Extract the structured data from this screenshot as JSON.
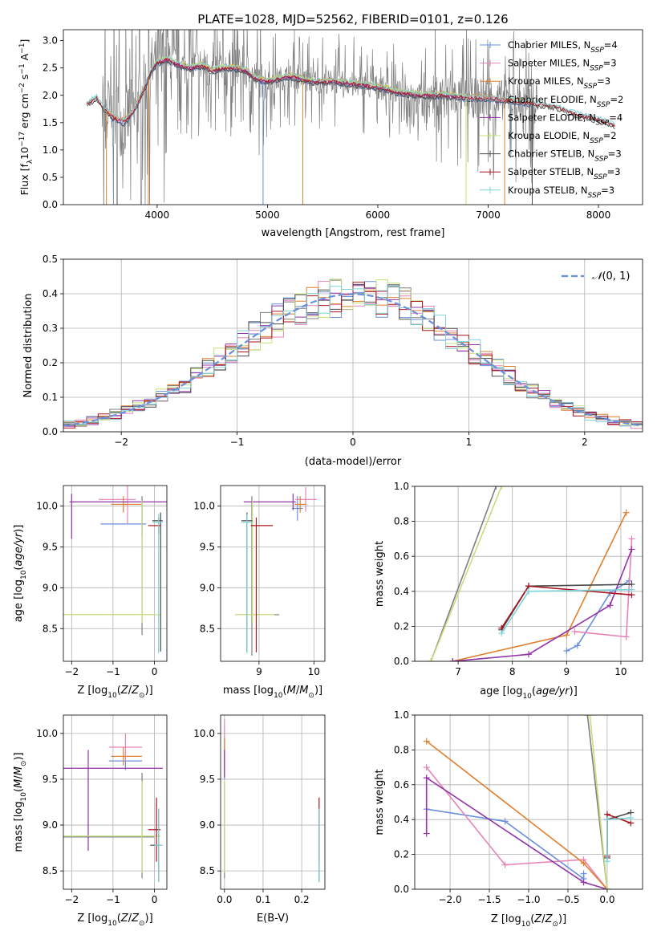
{
  "figure": {
    "title": "PLATE=1028, MJD=52562, FIBERID=0101, z=0.126"
  },
  "colors": {
    "Chabrier MILES": "#6a8fdc",
    "Salpeter MILES": "#e683b8",
    "Kroupa MILES": "#e0802e",
    "Chabrier ELODIE": "#7f7f7f",
    "Salpeter ELODIE": "#9333a8",
    "Kroupa ELODIE": "#c5e078",
    "Chabrier STELIB": "#4a4a4a",
    "Salpeter STELIB": "#a8141e",
    "Kroupa STELIB": "#7fd3d8"
  },
  "chart_data": [
    {
      "id": "spectrum",
      "type": "line",
      "title": "PLATE=1028, MJD=52562, FIBERID=0101, z=0.126",
      "xlabel": "wavelength [Angstrom, rest frame]",
      "ylabel": "Flux [f_λ 10^-17 erg cm^-2 s^-1 A^-1]",
      "xlim": [
        3150,
        8400
      ],
      "ylim": [
        0,
        3.2
      ],
      "xticks": [
        4000,
        5000,
        6000,
        7000,
        8000
      ],
      "yticks": [
        0.0,
        0.5,
        1.0,
        1.5,
        2.0,
        2.5,
        3.0
      ],
      "grid": false,
      "legend_position": "top-right",
      "data_color": "#7f7f7f",
      "noise_range": [
        3500,
        7450
      ],
      "continuum": {
        "x": [
          3360,
          3450,
          3520,
          3600,
          3700,
          3800,
          3900,
          3950,
          4000,
          4100,
          4200,
          4300,
          4400,
          4500,
          4600,
          4700,
          4800,
          4900,
          5000,
          5200,
          5400,
          5600,
          5800,
          6000,
          6200,
          6400,
          6600,
          6800,
          7000,
          7200,
          7400,
          7600,
          7800,
          8000,
          8150
        ],
        "y": [
          1.85,
          1.95,
          1.75,
          1.6,
          1.5,
          1.75,
          2.2,
          2.45,
          2.6,
          2.65,
          2.55,
          2.5,
          2.55,
          2.45,
          2.5,
          2.5,
          2.45,
          2.3,
          2.25,
          2.35,
          2.25,
          2.25,
          2.2,
          2.15,
          2.05,
          2.0,
          2.0,
          1.95,
          1.95,
          1.9,
          1.85,
          1.8,
          1.65,
          1.55,
          1.45
        ]
      },
      "series": [
        {
          "name": "Chabrier MILES, N_SSP=4",
          "key": "Chabrier MILES",
          "xrange": [
            3540,
            7400
          ]
        },
        {
          "name": "Salpeter MILES, N_SSP=3",
          "key": "Salpeter MILES",
          "xrange": [
            3540,
            7400
          ]
        },
        {
          "name": "Kroupa MILES, N_SSP=3",
          "key": "Kroupa MILES",
          "xrange": [
            3540,
            7400
          ]
        },
        {
          "name": "Chabrier ELODIE, N_SSP=2",
          "key": "Chabrier ELODIE",
          "xrange": [
            3900,
            6800
          ]
        },
        {
          "name": "Salpeter ELODIE, N_SSP=4",
          "key": "Salpeter ELODIE",
          "xrange": [
            3900,
            6800
          ]
        },
        {
          "name": "Kroupa ELODIE, N_SSP=2",
          "key": "Kroupa ELODIE",
          "xrange": [
            3900,
            6800
          ]
        },
        {
          "name": "Chabrier STELIB, N_SSP=3",
          "key": "Chabrier STELIB",
          "xrange": [
            3370,
            8150
          ]
        },
        {
          "name": "Salpeter STELIB, N_SSP=3",
          "key": "Salpeter STELIB",
          "xrange": [
            3370,
            8150
          ]
        },
        {
          "name": "Kroupa STELIB, N_SSP=3",
          "key": "Kroupa STELIB",
          "xrange": [
            3370,
            8150
          ]
        }
      ]
    },
    {
      "id": "residuals",
      "type": "line",
      "xlabel": "(data-model)/error",
      "ylabel": "Normed distribution",
      "xlim": [
        -2.5,
        2.5
      ],
      "ylim": [
        0,
        0.5
      ],
      "xticks": [
        -2,
        -1,
        0,
        1,
        2
      ],
      "yticks": [
        0.0,
        0.1,
        0.2,
        0.3,
        0.4,
        0.5
      ],
      "grid": true,
      "legend_position": "top-right",
      "legend": [
        "N(0,1)"
      ],
      "gaussian_color": "#6a8fdc",
      "bin_width": 0.1,
      "bin_start": -2.5
    },
    {
      "id": "age-vs-Z",
      "type": "scatter",
      "xlabel": "Z [log10(Z/Z_sun)]",
      "ylabel": "age  [log10(age/yr)]",
      "xlim": [
        -2.2,
        0.3
      ],
      "ylim": [
        8.1,
        10.25
      ],
      "xticks": [
        -2,
        -1,
        0
      ],
      "yticks": [
        8.5,
        9.0,
        9.5,
        10.0
      ],
      "grid": true,
      "points": [
        {
          "key": "Chabrier MILES",
          "x": -0.3,
          "y": 9.78,
          "xerr": [
            1.0,
            0.1
          ],
          "yerr": [
            0.15,
            0.3
          ]
        },
        {
          "key": "Salpeter MILES",
          "x": -0.65,
          "y": 10.08,
          "xerr": [
            0.7,
            0.2
          ],
          "yerr": [
            0.3,
            0.3
          ]
        },
        {
          "key": "Kroupa MILES",
          "x": -0.75,
          "y": 10.02,
          "xerr": [
            0.3,
            0.45
          ],
          "yerr": [
            0.1,
            0.1
          ]
        },
        {
          "key": "Chabrier ELODIE",
          "x": -0.3,
          "y": 8.67,
          "xerr": [
            2.0,
            0.3
          ],
          "yerr": [
            0.25,
            1.45
          ]
        },
        {
          "key": "Salpeter ELODIE",
          "x": -2.0,
          "y": 10.05,
          "xerr": [
            0.05,
            2.3
          ],
          "yerr": [
            0.45,
            0.1
          ]
        },
        {
          "key": "Kroupa ELODIE",
          "x": -0.3,
          "y": 8.67,
          "xerr": [
            1.9,
            0.45
          ],
          "yerr": [
            0.1,
            1.4
          ]
        },
        {
          "key": "Chabrier STELIB",
          "x": 0.15,
          "y": 9.82,
          "xerr": [
            0.2,
            0.05
          ],
          "yerr": [
            1.6,
            0.1
          ]
        },
        {
          "key": "Salpeter STELIB",
          "x": 0.1,
          "y": 9.76,
          "xerr": [
            0.25,
            0.05
          ],
          "yerr": [
            0.1,
            0.1
          ]
        },
        {
          "key": "Kroupa STELIB",
          "x": 0.1,
          "y": 9.8,
          "xerr": [
            0.15,
            0.1
          ],
          "yerr": [
            1.6,
            0.1
          ]
        }
      ]
    },
    {
      "id": "age-vs-mass",
      "type": "scatter",
      "xlabel": "mass [log10(M/M_sun)]",
      "ylabel": "",
      "xlim": [
        8.3,
        10.2
      ],
      "ylim": [
        8.1,
        10.25
      ],
      "xticks": [
        9,
        10
      ],
      "yticks": [
        8.5,
        9.0,
        9.5,
        10.0
      ],
      "grid": true,
      "points": [
        {
          "key": "Chabrier MILES",
          "x": 9.7,
          "y": 9.97,
          "xerr": [
            0.1,
            0.1
          ],
          "yerr": [
            0.15,
            0.15
          ]
        },
        {
          "key": "Salpeter MILES",
          "x": 9.85,
          "y": 10.08,
          "xerr": [
            0.2,
            0.2
          ],
          "yerr": [
            0.15,
            0.15
          ]
        },
        {
          "key": "Kroupa MILES",
          "x": 9.75,
          "y": 10.02,
          "xerr": [
            0.1,
            0.1
          ],
          "yerr": [
            0.1,
            0.1
          ]
        },
        {
          "key": "Chabrier ELODIE",
          "x": 8.87,
          "y": 8.67,
          "xerr": [
            0.3,
            0.5
          ],
          "yerr": [
            0.5,
            1.45
          ]
        },
        {
          "key": "Salpeter ELODIE",
          "x": 9.62,
          "y": 10.05,
          "xerr": [
            0.9,
            0.05
          ],
          "yerr": [
            0.1,
            0.1
          ]
        },
        {
          "key": "Kroupa ELODIE",
          "x": 8.88,
          "y": 8.67,
          "xerr": [
            0.3,
            0.4
          ],
          "yerr": [
            0.1,
            1.4
          ]
        },
        {
          "key": "Chabrier STELIB",
          "x": 8.78,
          "y": 9.82,
          "xerr": [
            0.1,
            0.1
          ],
          "yerr": [
            1.6,
            0.1
          ]
        },
        {
          "key": "Salpeter STELIB",
          "x": 8.95,
          "y": 9.76,
          "xerr": [
            0.1,
            0.3
          ],
          "yerr": [
            1.55,
            0.1
          ]
        },
        {
          "key": "Kroupa STELIB",
          "x": 8.78,
          "y": 9.8,
          "xerr": [
            0.1,
            0.1
          ],
          "yerr": [
            1.6,
            0.1
          ]
        }
      ]
    },
    {
      "id": "weight-vs-age",
      "type": "line",
      "xlabel": "age  [log10(age/yr)]",
      "ylabel": "mass weight",
      "xlim": [
        6.2,
        10.4
      ],
      "ylim": [
        0,
        1
      ],
      "xticks": [
        7,
        8,
        9,
        10
      ],
      "yticks": [
        0.0,
        0.2,
        0.4,
        0.6,
        0.8,
        1.0
      ],
      "grid": true,
      "series": [
        {
          "key": "Chabrier MILES",
          "x": [
            9.0,
            9.2,
            9.8,
            10.15
          ],
          "y": [
            0.06,
            0.09,
            0.39,
            0.46
          ]
        },
        {
          "key": "Salpeter MILES",
          "x": [
            9.15,
            10.1,
            10.2
          ],
          "y": [
            0.17,
            0.14,
            0.7
          ]
        },
        {
          "key": "Kroupa MILES",
          "x": [
            6.9,
            9.0,
            10.1
          ],
          "y": [
            0.0,
            0.15,
            0.85
          ]
        },
        {
          "key": "Chabrier ELODIE",
          "x": [
            6.5,
            7.7
          ],
          "y": [
            0.0,
            1.0
          ]
        },
        {
          "key": "Salpeter ELODIE",
          "x": [
            6.9,
            8.3,
            9.8,
            10.2
          ],
          "y": [
            0.0,
            0.04,
            0.32,
            0.64
          ]
        },
        {
          "key": "Kroupa ELODIE",
          "x": [
            6.5,
            7.8
          ],
          "y": [
            0.0,
            1.0
          ]
        },
        {
          "key": "Chabrier STELIB",
          "x": [
            7.8,
            8.3,
            10.2
          ],
          "y": [
            0.18,
            0.43,
            0.44
          ]
        },
        {
          "key": "Salpeter STELIB",
          "x": [
            7.8,
            8.3,
            10.2
          ],
          "y": [
            0.19,
            0.43,
            0.38
          ]
        },
        {
          "key": "Kroupa STELIB",
          "x": [
            7.8,
            8.3,
            10.2
          ],
          "y": [
            0.16,
            0.4,
            0.41
          ]
        }
      ]
    },
    {
      "id": "mass-vs-Z",
      "type": "scatter",
      "xlabel": "Z [log10(Z/Z_sun)]",
      "ylabel": "mass [log10(M/M_sun)]",
      "xlim": [
        -2.2,
        0.3
      ],
      "ylim": [
        8.3,
        10.2
      ],
      "xticks": [
        -2,
        -1,
        0
      ],
      "yticks": [
        8.5,
        9.0,
        9.5,
        10.0
      ],
      "grid": true,
      "points": [
        {
          "key": "Chabrier MILES",
          "x": -0.7,
          "y": 9.7,
          "xerr": [
            0.4,
            0.4
          ],
          "yerr": [
            0.1,
            0.1
          ]
        },
        {
          "key": "Salpeter MILES",
          "x": -0.7,
          "y": 9.85,
          "xerr": [
            0.4,
            0.4
          ],
          "yerr": [
            0.15,
            0.15
          ]
        },
        {
          "key": "Kroupa MILES",
          "x": -0.75,
          "y": 9.75,
          "xerr": [
            0.3,
            0.45
          ],
          "yerr": [
            0.1,
            0.1
          ]
        },
        {
          "key": "Chabrier ELODIE",
          "x": -0.3,
          "y": 8.87,
          "xerr": [
            2.0,
            0.3
          ],
          "yerr": [
            0.45,
            0.7
          ]
        },
        {
          "key": "Salpeter ELODIE",
          "x": -1.6,
          "y": 9.62,
          "xerr": [
            0.6,
            1.8
          ],
          "yerr": [
            0.9,
            0.2
          ]
        },
        {
          "key": "Kroupa ELODIE",
          "x": -0.3,
          "y": 8.88,
          "xerr": [
            1.9,
            0.45
          ],
          "yerr": [
            0.4,
            0.6
          ]
        },
        {
          "key": "Chabrier STELIB",
          "x": 0.1,
          "y": 8.78,
          "xerr": [
            0.2,
            0.05
          ],
          "yerr": [
            0.4,
            0.4
          ]
        },
        {
          "key": "Salpeter STELIB",
          "x": 0.05,
          "y": 8.95,
          "xerr": [
            0.2,
            0.1
          ],
          "yerr": [
            0.35,
            0.35
          ]
        },
        {
          "key": "Kroupa STELIB",
          "x": 0.1,
          "y": 8.78,
          "xerr": [
            0.1,
            0.1
          ],
          "yerr": [
            0.4,
            0.4
          ]
        }
      ]
    },
    {
      "id": "mass-vs-ebv",
      "type": "scatter",
      "xlabel": "E(B-V)",
      "ylabel": "",
      "xlim": [
        -0.01,
        0.26
      ],
      "ylim": [
        8.3,
        10.2
      ],
      "xticks": [
        0.0,
        0.1,
        0.2
      ],
      "yticks": [
        8.5,
        9.0,
        9.5,
        10.0
      ],
      "grid": true,
      "points": [
        {
          "key": "Chabrier MILES",
          "x": 0.0,
          "y": 9.7,
          "xerr": [
            0,
            0
          ],
          "yerr": [
            0.2,
            0.2
          ]
        },
        {
          "key": "Salpeter MILES",
          "x": 0.0,
          "y": 9.85,
          "xerr": [
            0,
            0
          ],
          "yerr": [
            0.3,
            0.3
          ]
        },
        {
          "key": "Kroupa MILES",
          "x": 0.0,
          "y": 9.75,
          "xerr": [
            0,
            0
          ],
          "yerr": [
            0.2,
            0.2
          ]
        },
        {
          "key": "Chabrier ELODIE",
          "x": 0.0,
          "y": 8.87,
          "xerr": [
            0,
            0
          ],
          "yerr": [
            0.45,
            0.6
          ]
        },
        {
          "key": "Salpeter ELODIE",
          "x": 0.0,
          "y": 9.62,
          "xerr": [
            0,
            0
          ],
          "yerr": [
            0.1,
            0.2
          ]
        },
        {
          "key": "Kroupa ELODIE",
          "x": 0.0,
          "y": 8.88,
          "xerr": [
            0,
            0
          ],
          "yerr": [
            0.4,
            0.6
          ]
        },
        {
          "key": "Chabrier STELIB",
          "x": 0.245,
          "y": 8.78,
          "xerr": [
            0,
            0
          ],
          "yerr": [
            0.4,
            0.4
          ]
        },
        {
          "key": "Salpeter STELIB",
          "x": 0.245,
          "y": 8.95,
          "xerr": [
            0,
            0
          ],
          "yerr": [
            0.35,
            0.35
          ]
        },
        {
          "key": "Kroupa STELIB",
          "x": 0.245,
          "y": 8.78,
          "xerr": [
            0,
            0
          ],
          "yerr": [
            0.4,
            0.4
          ]
        }
      ]
    },
    {
      "id": "weight-vs-Z",
      "type": "line",
      "xlabel": "Z [log10(Z/Z_sun)]",
      "ylabel": "mass weight",
      "xlim": [
        -2.45,
        0.45
      ],
      "ylim": [
        0,
        1
      ],
      "xticks": [
        -2.0,
        -1.5,
        -1.0,
        -0.5,
        0.0
      ],
      "yticks": [
        0.0,
        0.2,
        0.4,
        0.6,
        0.8,
        1.0
      ],
      "grid": true,
      "series": [
        {
          "key": "Chabrier MILES",
          "x": [
            -2.3,
            -1.3,
            -0.3,
            -0.3
          ],
          "y": [
            0.46,
            0.39,
            0.06,
            0.09
          ]
        },
        {
          "key": "Salpeter MILES",
          "x": [
            -2.3,
            -1.3,
            -0.3,
            0.0
          ],
          "y": [
            0.7,
            0.14,
            0.17,
            0.0
          ]
        },
        {
          "key": "Kroupa MILES",
          "x": [
            -2.3,
            -0.3,
            0.0
          ],
          "y": [
            0.85,
            0.15,
            0.0
          ]
        },
        {
          "key": "Chabrier ELODIE",
          "x": [
            -0.25,
            0.0
          ],
          "y": [
            1.0,
            0.0
          ]
        },
        {
          "key": "Salpeter ELODIE",
          "x": [
            -2.3,
            -2.3,
            -0.3,
            0.0
          ],
          "y": [
            0.32,
            0.64,
            0.04,
            0.0
          ]
        },
        {
          "key": "Kroupa ELODIE",
          "x": [
            -0.22,
            0.0
          ],
          "y": [
            1.0,
            0.0
          ]
        },
        {
          "key": "Chabrier STELIB",
          "x": [
            0.0,
            0.0,
            0.3
          ],
          "y": [
            0.18,
            0.4,
            0.44
          ]
        },
        {
          "key": "Salpeter STELIB",
          "x": [
            0.0,
            0.0,
            0.3
          ],
          "y": [
            0.19,
            0.43,
            0.38
          ]
        },
        {
          "key": "Kroupa STELIB",
          "x": [
            0.0,
            0.0,
            0.3
          ],
          "y": [
            0.16,
            0.4,
            0.41
          ]
        }
      ]
    }
  ]
}
